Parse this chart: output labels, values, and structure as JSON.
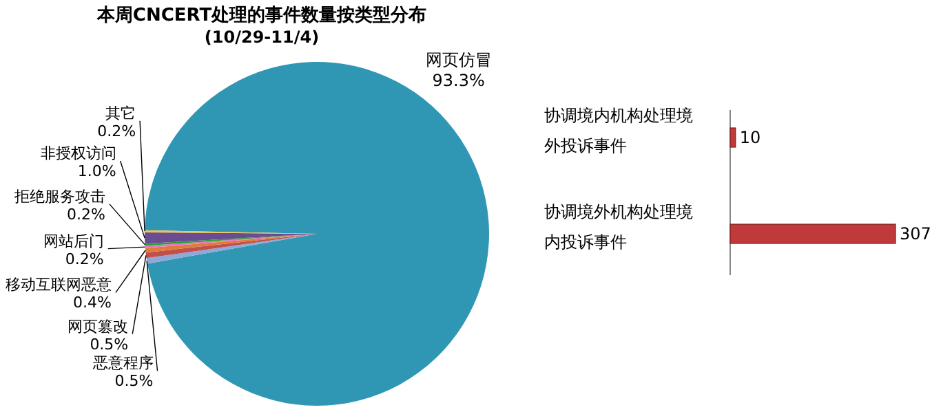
{
  "chart_data": [
    {
      "type": "pie",
      "title": "本周CNCERT处理的事件数量按类型分布",
      "subtitle": "(10/29-11/4)",
      "categories": [
        "网页仿冒",
        "恶意程序",
        "网页篡改",
        "移动互联网恶意",
        "网站后门",
        "拒绝服务攻击",
        "非授权访问",
        "其它"
      ],
      "values": [
        93.3,
        0.5,
        0.5,
        0.4,
        0.2,
        0.2,
        1.0,
        0.2
      ],
      "colors": [
        "#2f97b4",
        "#8fa8d8",
        "#c0504d",
        "#e07b39",
        "#e377c2",
        "#2ca02c",
        "#6a4c93",
        "#f2c14e"
      ],
      "value_labels": [
        "93.3%",
        "0.5%",
        "0.5%",
        "0.4%",
        "0.2%",
        "0.2%",
        "1.0%",
        "0.2%"
      ]
    },
    {
      "type": "bar",
      "orientation": "horizontal",
      "categories": [
        "协调境内机构处理境外投诉事件",
        "协调境外机构处理境内投诉事件"
      ],
      "values": [
        10,
        307
      ],
      "color": "#c0393b",
      "data_labels": true
    }
  ]
}
